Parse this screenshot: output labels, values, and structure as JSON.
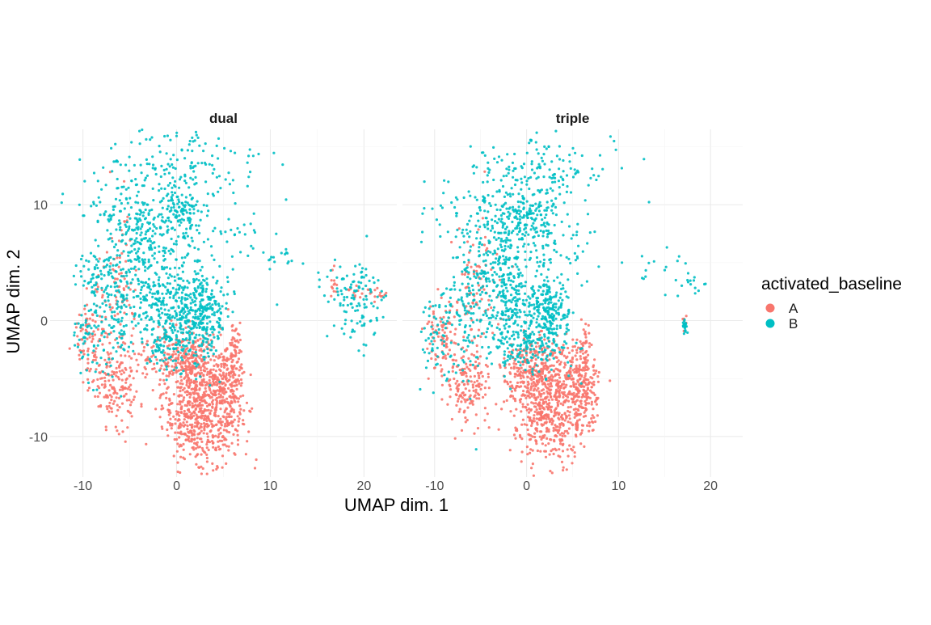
{
  "chart_data": {
    "type": "scatter",
    "xlabel": "UMAP dim. 1",
    "ylabel": "UMAP dim. 2",
    "xlim": [
      -13.5,
      23.5
    ],
    "ylim": [
      -13.5,
      16.5
    ],
    "x_ticks": [
      -10,
      0,
      10,
      20
    ],
    "y_ticks": [
      -10,
      0,
      10
    ],
    "x_tick_labels": [
      "-10",
      "0",
      "10",
      "20"
    ],
    "y_tick_labels": [
      "-10",
      "0",
      "10"
    ],
    "grid": true,
    "legend": {
      "title": "activated_baseline",
      "position": "right",
      "entries": [
        {
          "label": "A",
          "color": "#F8766D"
        },
        {
          "label": "B",
          "color": "#00BFC4"
        }
      ]
    },
    "facets": [
      {
        "title": "dual",
        "groups": {
          "A": [
            {
              "x": 2.5,
              "y": -7.5,
              "sx": 2.0,
              "sy": 2.5,
              "n": 650
            },
            {
              "x": 5.5,
              "y": -6.0,
              "sx": 0.9,
              "sy": 2.2,
              "n": 220
            },
            {
              "x": 1.5,
              "y": -3.5,
              "sx": 1.3,
              "sy": 1.2,
              "n": 180
            },
            {
              "x": -6.5,
              "y": -5.5,
              "sx": 1.3,
              "sy": 1.8,
              "n": 150
            },
            {
              "x": -9.0,
              "y": -1.5,
              "sx": 1.0,
              "sy": 2.0,
              "n": 90
            },
            {
              "x": -6.0,
              "y": 3.0,
              "sx": 1.0,
              "sy": 3.0,
              "n": 80
            },
            {
              "x": -2.0,
              "y": -3.0,
              "sx": 1.5,
              "sy": 1.0,
              "n": 60
            },
            {
              "x": 6.3,
              "y": -2.0,
              "sx": 0.3,
              "sy": 1.0,
              "n": 35
            },
            {
              "x": 20.0,
              "y": 2.3,
              "sx": 1.5,
              "sy": 0.3,
              "n": 25
            },
            {
              "x": 16.8,
              "y": 3.0,
              "sx": 0.2,
              "sy": 0.8,
              "n": 12
            }
          ],
          "B": [
            {
              "x": 2.8,
              "y": 0.5,
              "sx": 1.3,
              "sy": 2.0,
              "n": 280
            },
            {
              "x": -1.0,
              "y": 1.0,
              "sx": 1.7,
              "sy": 1.8,
              "n": 220
            },
            {
              "x": -3.5,
              "y": 6.0,
              "sx": 1.7,
              "sy": 2.8,
              "n": 220
            },
            {
              "x": 0.5,
              "y": 9.0,
              "sx": 1.3,
              "sy": 1.2,
              "n": 110
            },
            {
              "x": -6.5,
              "y": 1.5,
              "sx": 1.0,
              "sy": 3.5,
              "n": 130
            },
            {
              "x": -9.5,
              "y": -1.0,
              "sx": 1.0,
              "sy": 2.2,
              "n": 70
            },
            {
              "x": -8.5,
              "y": 4.5,
              "sx": 1.3,
              "sy": 0.8,
              "n": 45
            },
            {
              "x": -1.0,
              "y": -2.5,
              "sx": 1.5,
              "sy": 1.0,
              "n": 80
            },
            {
              "x": 0.0,
              "y": 13.5,
              "sx": 4.5,
              "sy": 1.6,
              "n": 170
            },
            {
              "x": 3.5,
              "y": 7.0,
              "sx": 3.0,
              "sy": 1.8,
              "n": 70
            },
            {
              "x": 19.0,
              "y": 2.0,
              "sx": 1.6,
              "sy": 1.8,
              "n": 120
            },
            {
              "x": 11.5,
              "y": 5.5,
              "sx": 1.3,
              "sy": 0.6,
              "n": 15
            },
            {
              "x": -5.0,
              "y": 9.5,
              "sx": 3.5,
              "sy": 1.0,
              "n": 70
            }
          ]
        }
      },
      {
        "title": "triple",
        "groups": {
          "A": [
            {
              "x": 2.5,
              "y": -7.3,
              "sx": 2.0,
              "sy": 2.6,
              "n": 620
            },
            {
              "x": 6.0,
              "y": -6.0,
              "sx": 0.9,
              "sy": 2.0,
              "n": 190
            },
            {
              "x": 0.5,
              "y": -4.0,
              "sx": 1.8,
              "sy": 1.2,
              "n": 200
            },
            {
              "x": -6.5,
              "y": -5.5,
              "sx": 1.3,
              "sy": 1.8,
              "n": 150
            },
            {
              "x": -9.0,
              "y": -1.5,
              "sx": 1.0,
              "sy": 2.0,
              "n": 90
            },
            {
              "x": -5.5,
              "y": 3.0,
              "sx": 1.2,
              "sy": 3.0,
              "n": 80
            },
            {
              "x": 6.3,
              "y": -2.0,
              "sx": 0.3,
              "sy": 1.0,
              "n": 30
            },
            {
              "x": 17.2,
              "y": -0.2,
              "sx": 0.1,
              "sy": 0.4,
              "n": 8
            }
          ],
          "B": [
            {
              "x": 2.5,
              "y": 0.5,
              "sx": 1.3,
              "sy": 2.2,
              "n": 260
            },
            {
              "x": -1.0,
              "y": 1.0,
              "sx": 1.8,
              "sy": 2.0,
              "n": 220
            },
            {
              "x": -3.0,
              "y": 6.0,
              "sx": 1.8,
              "sy": 2.8,
              "n": 210
            },
            {
              "x": 0.5,
              "y": 9.0,
              "sx": 1.3,
              "sy": 1.2,
              "n": 110
            },
            {
              "x": -6.5,
              "y": 1.5,
              "sx": 1.0,
              "sy": 3.5,
              "n": 120
            },
            {
              "x": -9.5,
              "y": -1.0,
              "sx": 1.0,
              "sy": 2.2,
              "n": 70
            },
            {
              "x": -1.0,
              "y": -2.5,
              "sx": 1.5,
              "sy": 1.0,
              "n": 80
            },
            {
              "x": 1.0,
              "y": 13.0,
              "sx": 4.5,
              "sy": 1.6,
              "n": 150
            },
            {
              "x": 3.5,
              "y": 7.0,
              "sx": 3.0,
              "sy": 1.8,
              "n": 60
            },
            {
              "x": 13.5,
              "y": 4.5,
              "sx": 2.5,
              "sy": 0.8,
              "n": 18
            },
            {
              "x": 17.2,
              "y": -0.5,
              "sx": 0.12,
              "sy": 0.3,
              "n": 22
            },
            {
              "x": 17.8,
              "y": 3.0,
              "sx": 0.8,
              "sy": 0.6,
              "n": 12
            },
            {
              "x": -5.0,
              "y": 9.5,
              "sx": 3.5,
              "sy": 1.0,
              "n": 70
            }
          ]
        }
      }
    ]
  }
}
